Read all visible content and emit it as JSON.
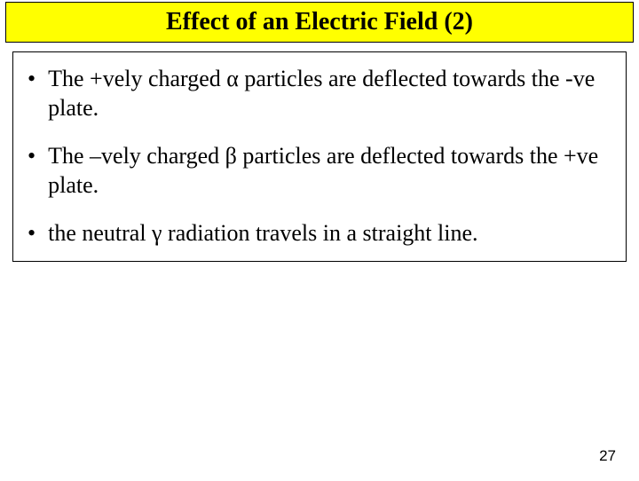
{
  "title": "Effect of an Electric Field (2)",
  "bullets": [
    "The +vely charged α particles are deflected towards the -ve plate.",
    "The –vely charged β particles are deflected towards the +ve plate.",
    " the neutral γ radiation travels in a straight line."
  ],
  "bullet_marker": "•",
  "page_number": "27",
  "colors": {
    "title_background": "#ffff00",
    "border": "#000000",
    "text": "#000000",
    "page_background": "#ffffff"
  },
  "typography": {
    "title_fontsize": 28,
    "title_weight": "bold",
    "bullet_fontsize": 26,
    "page_number_fontsize": 17,
    "font_family": "Times New Roman"
  }
}
